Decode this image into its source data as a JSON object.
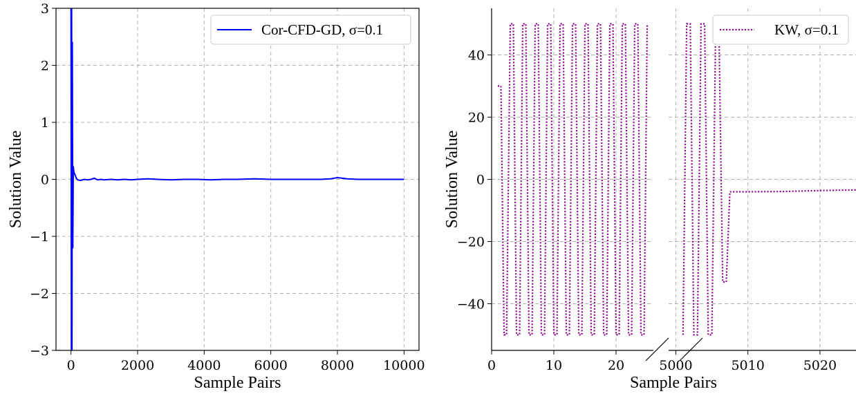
{
  "chart_data": [
    {
      "type": "line",
      "xlabel": "Sample Pairs",
      "ylabel": "Solution Value",
      "xlim": [
        -450,
        10450
      ],
      "ylim": [
        -3,
        3
      ],
      "xticks": [
        0,
        2000,
        4000,
        6000,
        8000,
        10000
      ],
      "xtick_labels": [
        "0",
        "2000",
        "4000",
        "6000",
        "8000",
        "10000"
      ],
      "yticks": [
        -3,
        -2,
        -1,
        0,
        1,
        2,
        3
      ],
      "ytick_labels": [
        "−3",
        "−2",
        "−1",
        "0",
        "1",
        "2",
        "3"
      ],
      "grid": true,
      "legend_position": "top-right",
      "series": [
        {
          "name": "Cor-CFD-GD, σ=0.1",
          "color": "#0000ff",
          "style": "solid",
          "points": [
            [
              0,
              3
            ],
            [
              10,
              -3
            ],
            [
              20,
              3
            ],
            [
              30,
              -3
            ],
            [
              40,
              2.4
            ],
            [
              55,
              -1.2
            ],
            [
              70,
              0.22
            ],
            [
              90,
              0.12
            ],
            [
              120,
              0.08
            ],
            [
              160,
              0.02
            ],
            [
              200,
              -0.01
            ],
            [
              300,
              -0.02
            ],
            [
              400,
              0.0
            ],
            [
              500,
              -0.01
            ],
            [
              600,
              0.0
            ],
            [
              700,
              0.02
            ],
            [
              800,
              -0.01
            ],
            [
              900,
              0.0
            ],
            [
              1000,
              -0.01
            ],
            [
              1200,
              0.0
            ],
            [
              1400,
              -0.01
            ],
            [
              1600,
              0.0
            ],
            [
              1800,
              -0.01
            ],
            [
              2000,
              0.0
            ],
            [
              2300,
              0.01
            ],
            [
              2600,
              0.0
            ],
            [
              3000,
              -0.01
            ],
            [
              3400,
              0.0
            ],
            [
              3800,
              0.0
            ],
            [
              4200,
              -0.01
            ],
            [
              4600,
              0.0
            ],
            [
              5000,
              0.0
            ],
            [
              5500,
              0.01
            ],
            [
              6000,
              0.0
            ],
            [
              6500,
              0.0
            ],
            [
              7000,
              0.0
            ],
            [
              7500,
              0.0
            ],
            [
              7800,
              0.01
            ],
            [
              8000,
              0.03
            ],
            [
              8300,
              0.01
            ],
            [
              8600,
              0.0
            ],
            [
              9000,
              0.0
            ],
            [
              9500,
              0.0
            ],
            [
              10000,
              0.0
            ]
          ]
        }
      ]
    },
    {
      "type": "line",
      "xlabel": "Sample Pairs",
      "ylabel": "Solution Value",
      "broken_x_axis": true,
      "segments": [
        {
          "xlim": [
            0,
            26
          ],
          "xticks": [
            0,
            10,
            20
          ],
          "xtick_labels": [
            "0",
            "10",
            "20"
          ]
        },
        {
          "xlim": [
            4999,
            5025
          ],
          "xticks": [
            5000,
            5010,
            5020
          ],
          "xtick_labels": [
            "5000",
            "5010",
            "5020"
          ]
        }
      ],
      "ylim": [
        -55,
        55
      ],
      "yticks": [
        -40,
        -20,
        0,
        20,
        40
      ],
      "ytick_labels": [
        "−40",
        "−20",
        "0",
        "20",
        "40"
      ],
      "grid": true,
      "legend_position": "top-right",
      "series": [
        {
          "name": "KW, σ=0.1",
          "color": "#8b008b",
          "style": "dotted",
          "points_segment_1": [
            [
              1,
              30
            ],
            [
              1.5,
              30
            ],
            [
              2,
              -50
            ],
            [
              2.4,
              -50
            ],
            [
              3,
              50
            ],
            [
              3.5,
              50
            ],
            [
              4,
              -50
            ],
            [
              4.5,
              -50
            ],
            [
              5,
              50
            ],
            [
              5.5,
              50
            ],
            [
              6,
              -50
            ],
            [
              6.5,
              -50
            ],
            [
              7,
              50
            ],
            [
              7.5,
              50
            ],
            [
              8,
              -50
            ],
            [
              8.5,
              -50
            ],
            [
              9,
              50
            ],
            [
              9.5,
              50
            ],
            [
              10,
              -50
            ],
            [
              10.5,
              -50
            ],
            [
              11,
              50
            ],
            [
              11.5,
              50
            ],
            [
              12,
              -50
            ],
            [
              12.5,
              -50
            ],
            [
              13,
              50
            ],
            [
              13.5,
              50
            ],
            [
              14,
              -50
            ],
            [
              14.5,
              -50
            ],
            [
              15,
              50
            ],
            [
              15.5,
              50
            ],
            [
              16,
              -50
            ],
            [
              16.5,
              -50
            ],
            [
              17,
              50
            ],
            [
              17.5,
              50
            ],
            [
              18,
              -50
            ],
            [
              18.5,
              -50
            ],
            [
              19,
              50
            ],
            [
              19.5,
              50
            ],
            [
              20,
              -50
            ],
            [
              20.5,
              -50
            ],
            [
              21,
              50
            ],
            [
              21.5,
              50
            ],
            [
              22,
              -50
            ],
            [
              22.5,
              -50
            ],
            [
              23,
              50
            ],
            [
              23.5,
              50
            ],
            [
              24,
              -50
            ],
            [
              24.5,
              -50
            ],
            [
              25,
              50
            ]
          ],
          "points_segment_2": [
            [
              5001,
              -50
            ],
            [
              5001.5,
              50
            ],
            [
              5002,
              50
            ],
            [
              5002.5,
              -50
            ],
            [
              5003,
              -50
            ],
            [
              5003.5,
              50
            ],
            [
              5004,
              50
            ],
            [
              5004.5,
              -50
            ],
            [
              5005,
              -50
            ],
            [
              5005.5,
              45
            ],
            [
              5006,
              45
            ],
            [
              5006.5,
              -33
            ],
            [
              5007,
              -33
            ],
            [
              5007.5,
              -4
            ],
            [
              5010,
              -4
            ],
            [
              5015,
              -3.9
            ],
            [
              5020,
              -3.6
            ],
            [
              5025,
              -3.4
            ]
          ]
        }
      ]
    }
  ]
}
